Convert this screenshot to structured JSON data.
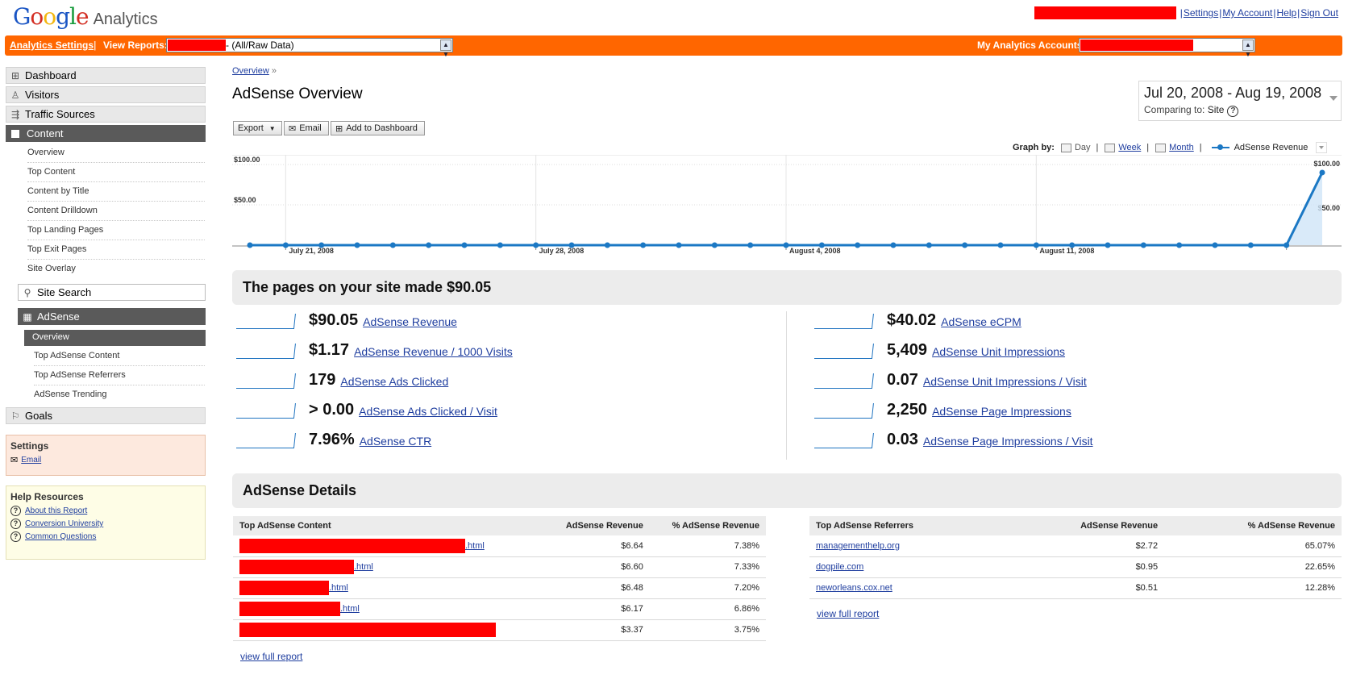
{
  "header": {
    "logo": {
      "google": "Google",
      "analytics": "Analytics"
    },
    "links": [
      "Settings",
      "My Account",
      "Help",
      "Sign Out"
    ]
  },
  "orange_bar": {
    "analytics_settings": "Analytics Settings",
    "view_reports_label": "View Reports:",
    "view_reports_value": "- (All/Raw Data)",
    "accounts_label": "My Analytics Accounts:"
  },
  "sidebar": {
    "dashboard": "Dashboard",
    "visitors": "Visitors",
    "traffic_sources": "Traffic Sources",
    "content": "Content",
    "content_items": [
      "Overview",
      "Top Content",
      "Content by Title",
      "Content Drilldown",
      "Top Landing Pages",
      "Top Exit Pages",
      "Site Overlay"
    ],
    "site_search": "Site Search",
    "adsense": "AdSense",
    "adsense_items": [
      "Overview",
      "Top AdSense Content",
      "Top AdSense Referrers",
      "AdSense Trending"
    ],
    "goals": "Goals",
    "settings_box": {
      "title": "Settings",
      "email": "Email"
    },
    "help_box": {
      "title": "Help Resources",
      "items": [
        "About this Report",
        "Conversion University",
        "Common Questions"
      ]
    }
  },
  "main": {
    "breadcrumb": "Overview",
    "breadcrumb_sep": "»",
    "title": "AdSense Overview",
    "date_range": "Jul 20, 2008 - Aug 19, 2008",
    "comparing_label": "Comparing to:",
    "comparing_value": "Site",
    "buttons": {
      "export": "Export",
      "email": "Email",
      "add_dashboard": "Add to Dashboard"
    },
    "graph_by": {
      "label": "Graph by:",
      "day": "Day",
      "week": "Week",
      "month": "Month",
      "metric": "AdSense Revenue"
    },
    "summary_title": "The pages on your site made $90.05",
    "metrics_left": [
      {
        "value": "$90.05",
        "label": "AdSense Revenue"
      },
      {
        "value": "$1.17",
        "label": "AdSense Revenue / 1000 Visits"
      },
      {
        "value": "179",
        "label": "AdSense Ads Clicked"
      },
      {
        "value": "> 0.00",
        "label": "AdSense Ads Clicked / Visit"
      },
      {
        "value": "7.96%",
        "label": "AdSense CTR"
      }
    ],
    "metrics_right": [
      {
        "value": "$40.02",
        "label": "AdSense eCPM"
      },
      {
        "value": "5,409",
        "label": "AdSense Unit Impressions"
      },
      {
        "value": "0.07",
        "label": "AdSense Unit Impressions / Visit"
      },
      {
        "value": "2,250",
        "label": "AdSense Page Impressions"
      },
      {
        "value": "0.03",
        "label": "AdSense Page Impressions / Visit"
      }
    ],
    "details_title": "AdSense Details",
    "content_table": {
      "headers": [
        "Top AdSense Content",
        "AdSense Revenue",
        "% AdSense Revenue"
      ],
      "rows": [
        {
          "suffix": ".html",
          "revenue": "$6.64",
          "pct": "7.38%"
        },
        {
          "suffix": ".html",
          "revenue": "$6.60",
          "pct": "7.33%"
        },
        {
          "suffix": ".html",
          "revenue": "$6.48",
          "pct": "7.20%"
        },
        {
          "suffix": ".html",
          "revenue": "$6.17",
          "pct": "6.86%"
        },
        {
          "suffix": "",
          "revenue": "$3.37",
          "pct": "3.75%"
        }
      ],
      "view_full": "view full report"
    },
    "referrers_table": {
      "headers": [
        "Top AdSense Referrers",
        "AdSense Revenue",
        "% AdSense Revenue"
      ],
      "rows": [
        {
          "site": "managementhelp.org",
          "revenue": "$2.72",
          "pct": "65.07%"
        },
        {
          "site": "dogpile.com",
          "revenue": "$0.95",
          "pct": "22.65%"
        },
        {
          "site": "neworleans.cox.net",
          "revenue": "$0.51",
          "pct": "12.28%"
        }
      ],
      "view_full": "view full report"
    }
  },
  "chart_data": {
    "type": "line",
    "series": [
      {
        "name": "AdSense Revenue",
        "color": "#1b78c4"
      }
    ],
    "x": [
      "2008-07-20",
      "2008-07-21",
      "2008-07-22",
      "2008-07-23",
      "2008-07-24",
      "2008-07-25",
      "2008-07-26",
      "2008-07-27",
      "2008-07-28",
      "2008-07-29",
      "2008-07-30",
      "2008-07-31",
      "2008-08-01",
      "2008-08-02",
      "2008-08-03",
      "2008-08-04",
      "2008-08-05",
      "2008-08-06",
      "2008-08-07",
      "2008-08-08",
      "2008-08-09",
      "2008-08-10",
      "2008-08-11",
      "2008-08-12",
      "2008-08-13",
      "2008-08-14",
      "2008-08-15",
      "2008-08-16",
      "2008-08-17",
      "2008-08-18",
      "2008-08-19"
    ],
    "values": [
      0,
      0,
      0,
      0,
      0,
      0,
      0,
      0,
      0,
      0,
      0,
      0,
      0,
      0,
      0,
      0,
      0,
      0,
      0,
      0,
      0,
      0,
      0,
      0,
      0,
      0,
      0,
      0,
      0,
      0,
      90.05
    ],
    "ylim": [
      0,
      100
    ],
    "y_ticks": [
      "$100.00",
      "$50.00"
    ],
    "x_tick_labels": [
      "July 21, 2008",
      "July 28, 2008",
      "August 4, 2008",
      "August 11, 2008"
    ]
  }
}
